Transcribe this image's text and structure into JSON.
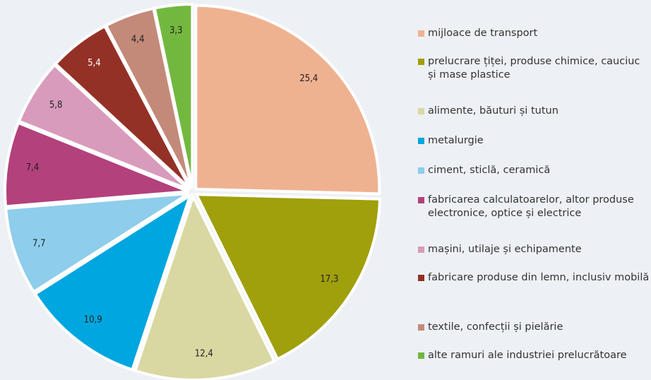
{
  "chart_data": {
    "type": "pie",
    "categories": [
      "mijloace de transport",
      "prelucrare țiței, produse chimice, cauciuc și mase plastice",
      "alimente, băuturi și tutun",
      "metalurgie",
      "ciment, sticlă, ceramică",
      "fabricarea calculatoarelor, altor produse electronice, optice și electrice",
      "mașini, utilaje și echipamente",
      "fabricare produse din lemn, inclusiv mobilă",
      "textile, confecții și pielărie",
      "alte ramuri ale industriei prelucrătoare"
    ],
    "values": [
      25.4,
      17.3,
      12.4,
      10.9,
      7.7,
      7.4,
      5.8,
      5.4,
      4.4,
      3.3
    ],
    "value_labels": [
      "25,4",
      "17,3",
      "12,4",
      "10,9",
      "7,7",
      "7,4",
      "5,8",
      "5,4",
      "4,4",
      "3,3"
    ],
    "colors": [
      "#efb290",
      "#a09f0c",
      "#d9d8a2",
      "#00a6df",
      "#8ecdeb",
      "#b3417c",
      "#d89bbb",
      "#943126",
      "#c38a7a",
      "#72b83f"
    ]
  }
}
